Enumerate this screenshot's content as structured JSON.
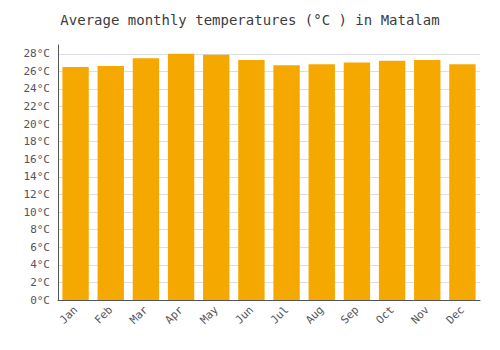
{
  "chart_data": {
    "type": "bar",
    "title": "Average monthly temperatures (°C ) in Matalam",
    "categories": [
      "Jan",
      "Feb",
      "Mar",
      "Apr",
      "May",
      "Jun",
      "Jul",
      "Aug",
      "Sep",
      "Oct",
      "Nov",
      "Dec"
    ],
    "values": [
      26.5,
      26.6,
      27.5,
      28.0,
      27.9,
      27.3,
      26.7,
      26.8,
      27.0,
      27.2,
      27.3,
      26.8
    ],
    "color": "#F5A800",
    "ylim": [
      0,
      29
    ],
    "yticks": [
      {
        "value": 0,
        "label": "0°C"
      },
      {
        "value": 2,
        "label": "2°C"
      },
      {
        "value": 4,
        "label": "4°C"
      },
      {
        "value": 6,
        "label": "6°C"
      },
      {
        "value": 8,
        "label": "8°C"
      },
      {
        "value": 10,
        "label": "10°C"
      },
      {
        "value": 12,
        "label": "12°C"
      },
      {
        "value": 14,
        "label": "14°C"
      },
      {
        "value": 16,
        "label": "16°C"
      },
      {
        "value": 18,
        "label": "18°C"
      },
      {
        "value": 20,
        "label": "20°C"
      },
      {
        "value": 22,
        "label": "22°C"
      },
      {
        "value": 24,
        "label": "24°C"
      },
      {
        "value": 26,
        "label": "26°C"
      },
      {
        "value": 28,
        "label": "28°C"
      }
    ],
    "grid": true
  }
}
